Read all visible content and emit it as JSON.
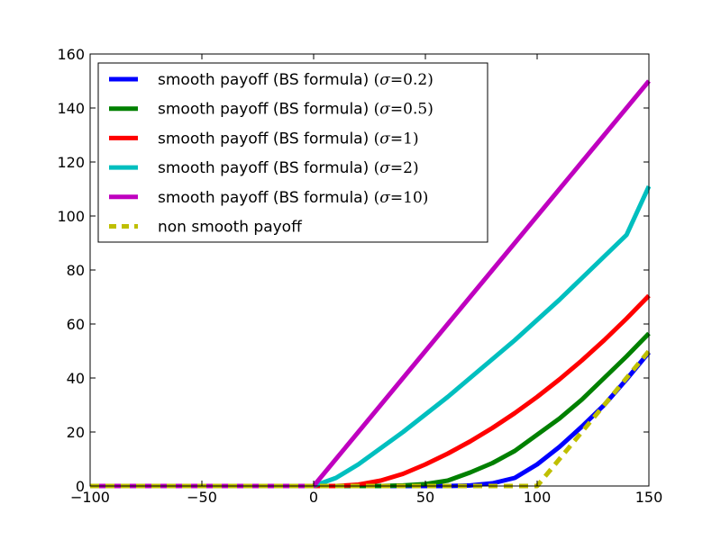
{
  "chart_data": {
    "type": "line",
    "title": "",
    "xlabel": "",
    "ylabel": "",
    "xlim": [
      -100,
      150
    ],
    "ylim": [
      0,
      160
    ],
    "xticks": [
      "−100",
      "−50",
      "0",
      "50",
      "100",
      "150"
    ],
    "xtick_values": [
      -100,
      -50,
      0,
      50,
      100,
      150
    ],
    "yticks": [
      "0",
      "20",
      "40",
      "60",
      "80",
      "100",
      "120",
      "140",
      "160"
    ],
    "ytick_values": [
      0,
      20,
      40,
      60,
      80,
      100,
      120,
      140,
      160
    ],
    "grid": false,
    "legend_position": "top-left",
    "x": [
      -100,
      0,
      10,
      20,
      30,
      40,
      50,
      60,
      70,
      80,
      90,
      100,
      110,
      120,
      130,
      140,
      150
    ],
    "series": [
      {
        "name": "smooth payoff (BS formula)",
        "sigma": "0.2",
        "color": "#0000ff",
        "dash": false,
        "values": [
          0,
          0,
          0,
          0,
          0,
          0,
          0,
          0,
          0.2,
          1,
          3,
          8,
          14.5,
          22,
          30,
          39.5,
          49.5
        ]
      },
      {
        "name": "smooth payoff (BS formula)",
        "sigma": "0.5",
        "color": "#008000",
        "dash": false,
        "values": [
          0,
          0,
          0,
          0,
          0,
          0.2,
          0.7,
          2,
          5,
          8.5,
          13,
          19,
          25,
          32,
          40,
          48,
          56.5
        ]
      },
      {
        "name": "smooth payoff (BS formula)",
        "sigma": "1",
        "color": "#ff0000",
        "dash": false,
        "values": [
          0,
          0,
          0,
          0.5,
          2,
          4.5,
          8,
          12,
          16.5,
          21.5,
          27,
          33,
          39.5,
          46.5,
          54,
          62,
          70.5
        ]
      },
      {
        "name": "smooth payoff (BS formula)",
        "sigma": "2",
        "color": "#00bfbf",
        "dash": false,
        "values": [
          0,
          0,
          3,
          8,
          14,
          20,
          26.5,
          33,
          40,
          47,
          54,
          61.5,
          69,
          77,
          85,
          93,
          111
        ]
      },
      {
        "name": "smooth payoff (BS formula)",
        "sigma": "10",
        "color": "#bf00bf",
        "dash": false,
        "values": [
          0,
          0,
          10,
          20,
          30,
          40,
          50,
          60,
          70,
          80,
          90,
          100,
          110,
          120,
          130,
          140,
          150
        ]
      },
      {
        "name": "non smooth payoff",
        "sigma": "",
        "color": "#bfbf00",
        "dash": true,
        "values": [
          0,
          0,
          0,
          0,
          0,
          0,
          0,
          0,
          0,
          0,
          0,
          0,
          10,
          20,
          30,
          40,
          50
        ]
      }
    ],
    "legend_entries": [
      {
        "label": "smooth payoff (BS formula) ",
        "sigma_symbol": "σ",
        "eq": "=",
        "sigma_value": "0.2"
      },
      {
        "label": "smooth payoff (BS formula) ",
        "sigma_symbol": "σ",
        "eq": "=",
        "sigma_value": "0.5"
      },
      {
        "label": "smooth payoff (BS formula) ",
        "sigma_symbol": "σ",
        "eq": "=",
        "sigma_value": "1"
      },
      {
        "label": "smooth payoff (BS formula) ",
        "sigma_symbol": "σ",
        "eq": "=",
        "sigma_value": "2"
      },
      {
        "label": "smooth payoff (BS formula) ",
        "sigma_symbol": "σ",
        "eq": "=",
        "sigma_value": "10"
      },
      {
        "label": "non smooth payoff",
        "sigma_symbol": "",
        "eq": "",
        "sigma_value": ""
      }
    ]
  }
}
